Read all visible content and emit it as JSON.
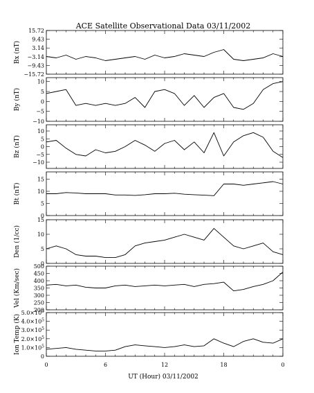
{
  "chart_data": {
    "type": "line",
    "title": "ACE Satellite Observational Data   03/11/2002",
    "xlabel": "UT (Hour)   03/11/2002",
    "x_ticks": [
      "0",
      "6",
      "12",
      "18",
      "0"
    ],
    "xlim": [
      0,
      24
    ],
    "grid": false,
    "panels": [
      {
        "name": "Bx",
        "ylabel": "Bx (nT)",
        "ylim": [
          -15.72,
          15.72
        ],
        "yticks": [
          {
            "v": 15.72,
            "label": "15.72"
          },
          {
            "v": 9.43,
            "label": "9.43"
          },
          {
            "v": 3.14,
            "label": "3.14"
          },
          {
            "v": -3.14,
            "label": "−3.14"
          },
          {
            "v": -9.43,
            "label": "−9.43"
          },
          {
            "v": -15.72,
            "label": "−15.72"
          }
        ],
        "x": [
          0,
          1,
          2,
          3,
          4,
          5,
          6,
          7,
          8,
          9,
          10,
          11,
          12,
          13,
          14,
          15,
          16,
          17,
          18,
          19,
          20,
          21,
          22,
          23,
          24
        ],
        "values": [
          -3,
          -4,
          -2,
          -5,
          -3,
          -4,
          -6,
          -5,
          -4,
          -3,
          -5,
          -2,
          -4,
          -3,
          -1,
          -2,
          -3,
          0,
          2,
          -5,
          -6,
          -5,
          -4,
          -1,
          -3
        ]
      },
      {
        "name": "By",
        "ylabel": "By (nT)",
        "ylim": [
          -10,
          12
        ],
        "yticks": [
          {
            "v": 10,
            "label": "10"
          },
          {
            "v": 5,
            "label": "5"
          },
          {
            "v": 0,
            "label": "0"
          },
          {
            "v": -5,
            "label": "−5"
          },
          {
            "v": -10,
            "label": "−10"
          }
        ],
        "x": [
          0,
          1,
          2,
          3,
          4,
          5,
          6,
          7,
          8,
          9,
          10,
          11,
          12,
          13,
          14,
          15,
          16,
          17,
          18,
          19,
          20,
          21,
          22,
          23,
          24
        ],
        "values": [
          4,
          5,
          6,
          -2,
          -1,
          -2,
          -1,
          -2,
          -1,
          2,
          -3,
          5,
          6,
          4,
          -2,
          3,
          -3,
          2,
          4,
          -3,
          -4,
          -1,
          6,
          9,
          10
        ]
      },
      {
        "name": "Bz",
        "ylabel": "Bz (nT)",
        "ylim": [
          -14,
          14
        ],
        "yticks": [
          {
            "v": 10,
            "label": "10"
          },
          {
            "v": 5,
            "label": "5"
          },
          {
            "v": 0,
            "label": "0"
          },
          {
            "v": -5,
            "label": "−5"
          },
          {
            "v": -10,
            "label": "−10"
          }
        ],
        "x": [
          0,
          1,
          2,
          3,
          4,
          5,
          6,
          7,
          8,
          9,
          10,
          11,
          12,
          13,
          14,
          15,
          16,
          17,
          18,
          19,
          20,
          21,
          22,
          23,
          24
        ],
        "values": [
          3,
          4,
          -1,
          -5,
          -6,
          -2,
          -4,
          -3,
          0,
          4,
          1,
          -3,
          2,
          4,
          -2,
          3,
          -4,
          9,
          -6,
          3,
          7,
          9,
          6,
          -3,
          -7
        ]
      },
      {
        "name": "Bt",
        "ylabel": "Bt (nT)",
        "ylim": [
          0,
          18
        ],
        "yticks": [
          {
            "v": 15,
            "label": "15"
          },
          {
            "v": 10,
            "label": "10"
          },
          {
            "v": 5,
            "label": "5"
          },
          {
            "v": 0,
            "label": "0"
          }
        ],
        "x": [
          0,
          1,
          2,
          3,
          4,
          5,
          6,
          7,
          8,
          9,
          10,
          11,
          12,
          13,
          14,
          15,
          16,
          17,
          18,
          19,
          20,
          21,
          22,
          23,
          24
        ],
        "values": [
          9,
          9,
          9.5,
          9.3,
          9,
          9,
          9,
          8.5,
          8.5,
          8.3,
          8.6,
          9,
          9,
          9.2,
          8.8,
          8.6,
          8.4,
          8.2,
          13,
          13,
          12.5,
          13,
          13.5,
          14,
          13
        ]
      },
      {
        "name": "Den",
        "ylabel": "Den (1/cc)",
        "ylim": [
          0,
          15
        ],
        "yticks": [
          {
            "v": 15,
            "label": "15"
          },
          {
            "v": 10,
            "label": "10"
          },
          {
            "v": 5,
            "label": "5"
          },
          {
            "v": 0,
            "label": "0"
          }
        ],
        "x": [
          0,
          1,
          2,
          3,
          4,
          5,
          6,
          7,
          8,
          9,
          10,
          11,
          12,
          13,
          14,
          15,
          16,
          17,
          18,
          19,
          20,
          21,
          22,
          23,
          24
        ],
        "values": [
          5,
          6,
          5,
          3,
          2.5,
          2.5,
          2,
          2,
          3,
          6,
          7,
          7.5,
          8,
          9,
          10,
          9,
          8,
          12,
          9,
          6,
          5,
          6,
          7,
          4,
          3
        ]
      },
      {
        "name": "Vel",
        "ylabel": "Vel (Km/sec)",
        "ylim": [
          200,
          500
        ],
        "yticks": [
          {
            "v": 500,
            "label": "500"
          },
          {
            "v": 450,
            "label": "450"
          },
          {
            "v": 400,
            "label": "400"
          },
          {
            "v": 350,
            "label": "350"
          },
          {
            "v": 300,
            "label": "300"
          },
          {
            "v": 250,
            "label": "250"
          },
          {
            "v": 200,
            "label": "200"
          }
        ],
        "x": [
          0,
          1,
          2,
          3,
          4,
          5,
          6,
          7,
          8,
          9,
          10,
          11,
          12,
          13,
          14,
          15,
          16,
          17,
          18,
          19,
          20,
          21,
          22,
          23,
          24
        ],
        "values": [
          370,
          375,
          365,
          370,
          355,
          350,
          350,
          365,
          370,
          360,
          365,
          370,
          365,
          370,
          375,
          360,
          375,
          380,
          390,
          330,
          340,
          360,
          375,
          400,
          460
        ]
      },
      {
        "name": "IonTemp",
        "ylabel": "Ion Temp (K)",
        "ylim": [
          0,
          500000
        ],
        "yticks": [
          {
            "v": 500000,
            "base": "5.0×10",
            "exp": "5"
          },
          {
            "v": 400000,
            "base": "4.0×10",
            "exp": "5"
          },
          {
            "v": 300000,
            "base": "3.0×10",
            "exp": "5"
          },
          {
            "v": 200000,
            "base": "2.0×10",
            "exp": "5"
          },
          {
            "v": 100000,
            "base": "1.0×10",
            "exp": "5"
          },
          {
            "v": 0,
            "base": "0",
            "exp": ""
          }
        ],
        "x": [
          0,
          1,
          2,
          3,
          4,
          5,
          6,
          7,
          8,
          9,
          10,
          11,
          12,
          13,
          14,
          15,
          16,
          17,
          18,
          19,
          20,
          21,
          22,
          23,
          24
        ],
        "values": [
          80000,
          90000,
          100000,
          80000,
          70000,
          60000,
          60000,
          70000,
          110000,
          130000,
          120000,
          110000,
          100000,
          110000,
          130000,
          110000,
          120000,
          200000,
          150000,
          110000,
          170000,
          200000,
          160000,
          150000,
          200000
        ]
      }
    ]
  }
}
